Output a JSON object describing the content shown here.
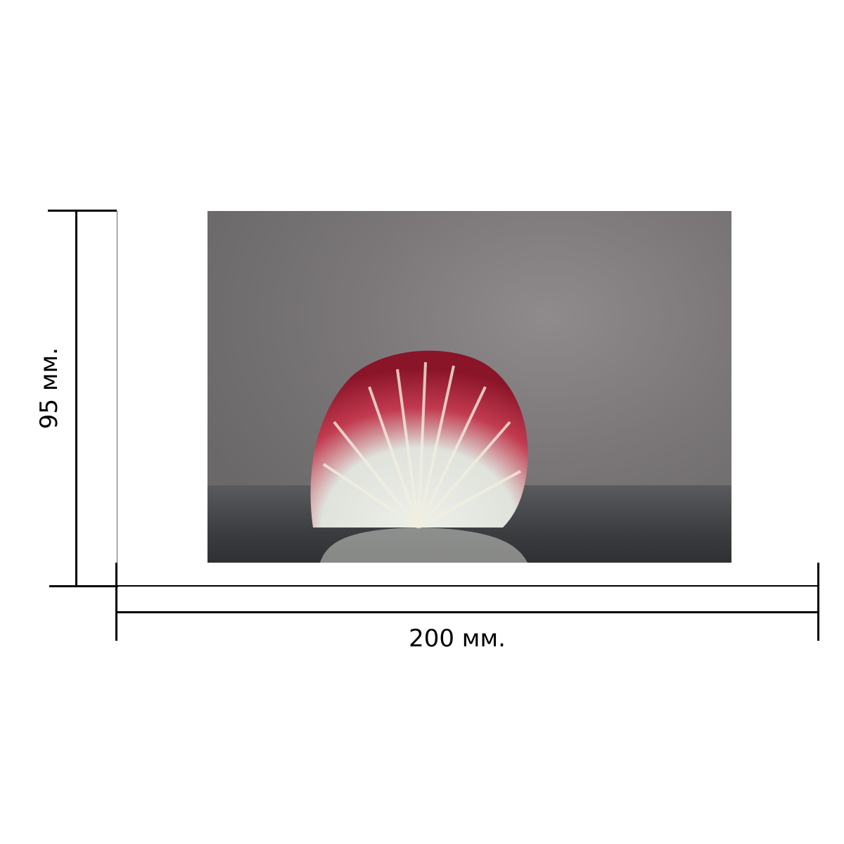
{
  "dimensions": {
    "width_label": "200 мм.",
    "height_label": "95 мм."
  },
  "product_image": {
    "subject": "radicchio-photo",
    "colors": {
      "background": "#7b7779",
      "leaf_red": "#a3182f",
      "leaf_white": "#e9ece6"
    }
  }
}
